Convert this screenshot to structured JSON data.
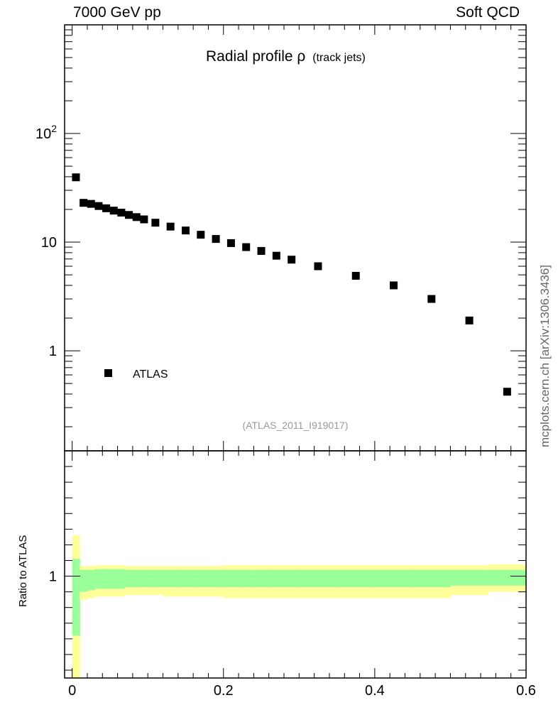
{
  "header": {
    "left": "7000 GeV pp",
    "right": "Soft QCD"
  },
  "side_label": "mcplots.cern.ch [arXiv:1306.3436]",
  "colors": {
    "data": "#000000",
    "band_inner": "#99ff99",
    "band_outer": "#ffff99",
    "reference_tag": "#999999"
  },
  "chart_data": [
    {
      "type": "scatter",
      "title": "Radial profile ρ",
      "title_suffix": "(track jets)",
      "reference": "(ATLAS_2011_I919017)",
      "y_scale": "log",
      "xlim": [
        -0.01,
        0.6
      ],
      "ylim": [
        0.12,
        1000
      ],
      "y_tick_labels": [
        {
          "value": 1,
          "label": "1"
        },
        {
          "value": 10,
          "label": "10"
        },
        {
          "value": 100,
          "base": "10",
          "exp": "2"
        }
      ],
      "legend": "ATLAS",
      "legend_position": "bottom-left",
      "series": [
        {
          "name": "ATLAS",
          "x": [
            0.005,
            0.015,
            0.025,
            0.035,
            0.045,
            0.055,
            0.065,
            0.075,
            0.085,
            0.095,
            0.11,
            0.13,
            0.15,
            0.17,
            0.19,
            0.21,
            0.23,
            0.25,
            0.27,
            0.29,
            0.325,
            0.375,
            0.425,
            0.475,
            0.525,
            0.575
          ],
          "y": [
            39.5,
            23.0,
            22.5,
            21.5,
            20.5,
            19.5,
            18.7,
            17.8,
            17.0,
            16.2,
            15.1,
            13.9,
            12.8,
            11.7,
            10.7,
            9.8,
            9.0,
            8.3,
            7.5,
            6.9,
            6.0,
            4.9,
            4.0,
            3.0,
            1.9,
            0.42
          ]
        }
      ]
    },
    {
      "type": "area",
      "ylabel": "Ratio to ATLAS",
      "xlim": [
        -0.01,
        0.6
      ],
      "x_tick_labels": [
        "0",
        "0.2",
        "0.4",
        "0.6"
      ],
      "y_tick_labels": [
        "1"
      ],
      "bin_edges": [
        0,
        0.01,
        0.02,
        0.03,
        0.04,
        0.05,
        0.06,
        0.07,
        0.08,
        0.09,
        0.1,
        0.12,
        0.14,
        0.16,
        0.18,
        0.2,
        0.22,
        0.24,
        0.26,
        0.28,
        0.3,
        0.35,
        0.4,
        0.45,
        0.5,
        0.55,
        0.6
      ],
      "inner_band": {
        "low": [
          0.62,
          0.9,
          0.91,
          0.92,
          0.92,
          0.92,
          0.92,
          0.93,
          0.93,
          0.93,
          0.93,
          0.93,
          0.93,
          0.93,
          0.93,
          0.93,
          0.93,
          0.93,
          0.93,
          0.93,
          0.93,
          0.93,
          0.93,
          0.93,
          0.94,
          0.94
        ],
        "high": [
          1.11,
          1.04,
          1.04,
          1.045,
          1.045,
          1.045,
          1.045,
          1.04,
          1.04,
          1.04,
          1.04,
          1.04,
          1.04,
          1.04,
          1.04,
          1.04,
          1.04,
          1.04,
          1.04,
          1.04,
          1.04,
          1.04,
          1.04,
          1.04,
          1.04,
          1.04
        ]
      },
      "outer_band": {
        "low": [
          0.35,
          0.85,
          0.86,
          0.87,
          0.87,
          0.87,
          0.87,
          0.88,
          0.88,
          0.88,
          0.88,
          0.87,
          0.87,
          0.87,
          0.87,
          0.86,
          0.86,
          0.86,
          0.86,
          0.86,
          0.86,
          0.86,
          0.86,
          0.86,
          0.88,
          0.9
        ],
        "high": [
          1.26,
          1.065,
          1.065,
          1.07,
          1.07,
          1.07,
          1.07,
          1.065,
          1.065,
          1.065,
          1.065,
          1.065,
          1.065,
          1.065,
          1.065,
          1.07,
          1.07,
          1.07,
          1.07,
          1.07,
          1.07,
          1.07,
          1.07,
          1.07,
          1.07,
          1.075
        ]
      }
    }
  ]
}
